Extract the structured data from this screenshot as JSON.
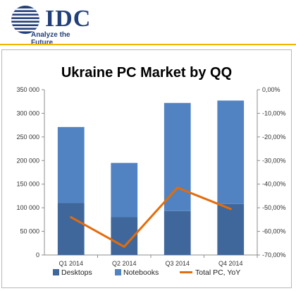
{
  "header": {
    "logo_text": "IDC",
    "tagline": "Analyze the Future"
  },
  "colors": {
    "desktops": "#3f679b",
    "notebooks": "#5183c2",
    "total_line": "#e46c0a",
    "brand": "#233f7a",
    "accent": "#f2b400"
  },
  "chart_data": {
    "type": "bar",
    "stacked": true,
    "title": "Ukraine PC Market by QQ",
    "categories": [
      "Q1 2014",
      "Q2 2014",
      "Q3 2014",
      "Q4 2014"
    ],
    "series": [
      {
        "name": "Desktops",
        "type": "bar",
        "axis": "left",
        "values": [
          110000,
          80000,
          93000,
          108000
        ]
      },
      {
        "name": "Notebooks",
        "type": "bar",
        "axis": "left",
        "values": [
          161000,
          115000,
          229000,
          219000
        ]
      },
      {
        "name": "Total PC, YoY",
        "type": "line",
        "axis": "right",
        "values": [
          -54,
          -66.5,
          -41.5,
          -50.5
        ]
      }
    ],
    "y_left": {
      "min": 0,
      "max": 350000,
      "ticks": [
        0,
        50000,
        100000,
        150000,
        200000,
        250000,
        300000,
        350000
      ],
      "tick_labels": [
        "0",
        "50 000",
        "100 000",
        "150 000",
        "200 000",
        "250 000",
        "300 000",
        "350 000"
      ]
    },
    "y_right": {
      "min": -70,
      "max": 0,
      "ticks": [
        0,
        -10,
        -20,
        -30,
        -40,
        -50,
        -60,
        -70
      ],
      "tick_labels": [
        "0,00%",
        "-10,00%",
        "-20,00%",
        "-30,00%",
        "-40,00%",
        "-50,00%",
        "-60,00%",
        "-70,00%"
      ]
    },
    "grid": false,
    "legend_position": "bottom"
  }
}
